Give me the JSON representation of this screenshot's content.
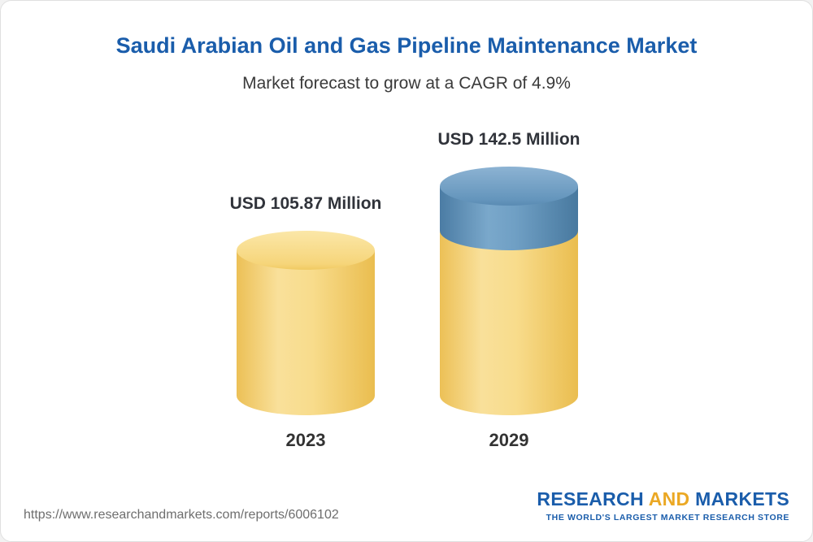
{
  "header": {
    "title": "Saudi Arabian Oil and Gas Pipeline Maintenance Market",
    "subtitle": "Market forecast to grow at a CAGR of 4.9%"
  },
  "chart_data": {
    "type": "bar",
    "categories": [
      "2023",
      "2029"
    ],
    "values": [
      105.87,
      142.5
    ],
    "value_labels": [
      "USD 105.87 Million",
      "USD 142.5 Million"
    ],
    "unit": "USD Million",
    "title": "Saudi Arabian Oil and Gas Pipeline Maintenance Market",
    "subtitle": "Market forecast to grow at a CAGR of 4.9%",
    "cagr": "4.9%",
    "series": [
      {
        "name": "base-value",
        "color": "#f6d57a"
      },
      {
        "name": "growth-to-2029",
        "color": "#6495bc"
      }
    ],
    "legend": "none",
    "grid": false
  },
  "footer": {
    "url": "https://www.researchandmarkets.com/reports/6006102",
    "logo": {
      "part1": "RESEARCH",
      "part2": "AND",
      "part3": "MARKETS",
      "tagline": "THE WORLD'S LARGEST MARKET RESEARCH STORE"
    }
  },
  "colors": {
    "title_blue": "#1a5dab",
    "bar_yellow": "#f6d57a",
    "bar_blue": "#6495bc",
    "logo_gold": "#eba824"
  }
}
